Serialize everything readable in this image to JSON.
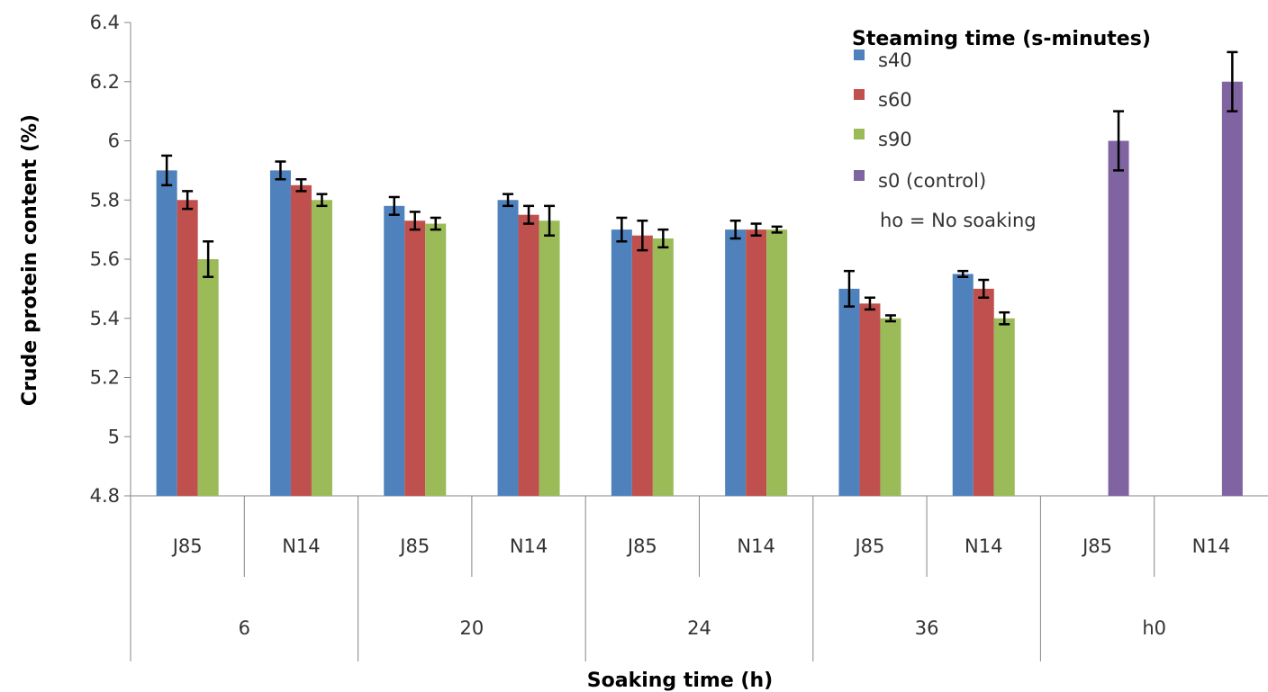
{
  "chart_data": {
    "type": "bar",
    "ylabel": "Crude protein content (%)",
    "xlabel": "Soaking time (h)",
    "ylim": [
      4.8,
      6.4
    ],
    "yticks": [
      "4.8",
      "5",
      "5.2",
      "5.4",
      "5.6",
      "5.8",
      "6",
      "6.2",
      "6.4"
    ],
    "grid": false,
    "legend": {
      "title": "Steaming time (s-minutes)",
      "placement": "top-right",
      "note": "ho = No soaking"
    },
    "groups": [
      {
        "label": "6",
        "categories": [
          "J85",
          "N14"
        ]
      },
      {
        "label": "20",
        "categories": [
          "J85",
          "N14"
        ]
      },
      {
        "label": "24",
        "categories": [
          "J85",
          "N14"
        ]
      },
      {
        "label": "36",
        "categories": [
          "J85",
          "N14"
        ]
      },
      {
        "label": "h0",
        "categories": [
          "J85",
          "N14"
        ]
      }
    ],
    "categories": [
      "J85",
      "N14",
      "J85",
      "N14",
      "J85",
      "N14",
      "J85",
      "N14",
      "J85",
      "N14"
    ],
    "series": [
      {
        "name": "s40",
        "color": "#4F81BD",
        "values": [
          5.9,
          5.9,
          5.78,
          5.8,
          5.7,
          5.7,
          5.5,
          5.55,
          null,
          null
        ],
        "errors": [
          0.05,
          0.03,
          0.03,
          0.02,
          0.04,
          0.03,
          0.06,
          0.01,
          null,
          null
        ]
      },
      {
        "name": "s60",
        "color": "#C0504D",
        "values": [
          5.8,
          5.85,
          5.73,
          5.75,
          5.68,
          5.7,
          5.45,
          5.5,
          null,
          null
        ],
        "errors": [
          0.03,
          0.02,
          0.03,
          0.03,
          0.05,
          0.02,
          0.02,
          0.03,
          null,
          null
        ]
      },
      {
        "name": "s90",
        "color": "#9BBB59",
        "values": [
          5.6,
          5.8,
          5.72,
          5.73,
          5.67,
          5.7,
          5.4,
          5.4,
          null,
          null
        ],
        "errors": [
          0.06,
          0.02,
          0.02,
          0.05,
          0.03,
          0.01,
          0.01,
          0.02,
          null,
          null
        ]
      },
      {
        "name": "s0 (control)",
        "color": "#8064A2",
        "values": [
          null,
          null,
          null,
          null,
          null,
          null,
          null,
          null,
          6.0,
          6.2
        ],
        "errors": [
          null,
          null,
          null,
          null,
          null,
          null,
          null,
          null,
          0.1,
          0.1
        ]
      }
    ]
  }
}
